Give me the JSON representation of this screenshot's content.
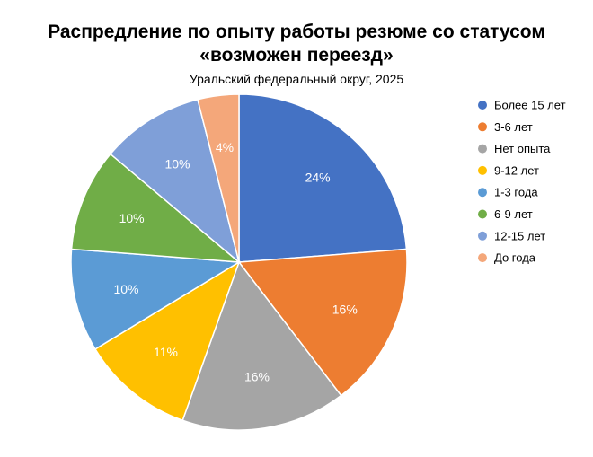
{
  "chart_data": {
    "type": "pie",
    "title_lines": [
      "Распредление по опыту работы резюме со статусом",
      "«возможен переезд»"
    ],
    "subtitle": "Уральский федеральный округ, 2025",
    "legend_position": "right",
    "slices": [
      {
        "label": "Более 15 лет",
        "value": 24,
        "value_label": "24%",
        "color": "#4472C4"
      },
      {
        "label": "3-6 лет",
        "value": 16,
        "value_label": "16%",
        "color": "#ED7D31"
      },
      {
        "label": "Нет опыта",
        "value": 16,
        "value_label": "16%",
        "color": "#A5A5A5"
      },
      {
        "label": "9-12 лет",
        "value": 11,
        "value_label": "11%",
        "color": "#FFC000"
      },
      {
        "label": "1-3 года",
        "value": 10,
        "value_label": "10%",
        "color": "#5B9BD5"
      },
      {
        "label": "6-9 лет",
        "value": 10,
        "value_label": "10%",
        "color": "#70AD47"
      },
      {
        "label": "12-15 лет",
        "value": 10,
        "value_label": "10%",
        "color": "#7F9FD8"
      },
      {
        "label": "До года",
        "value": 4,
        "value_label": "4%",
        "color": "#F4A77A"
      }
    ]
  }
}
